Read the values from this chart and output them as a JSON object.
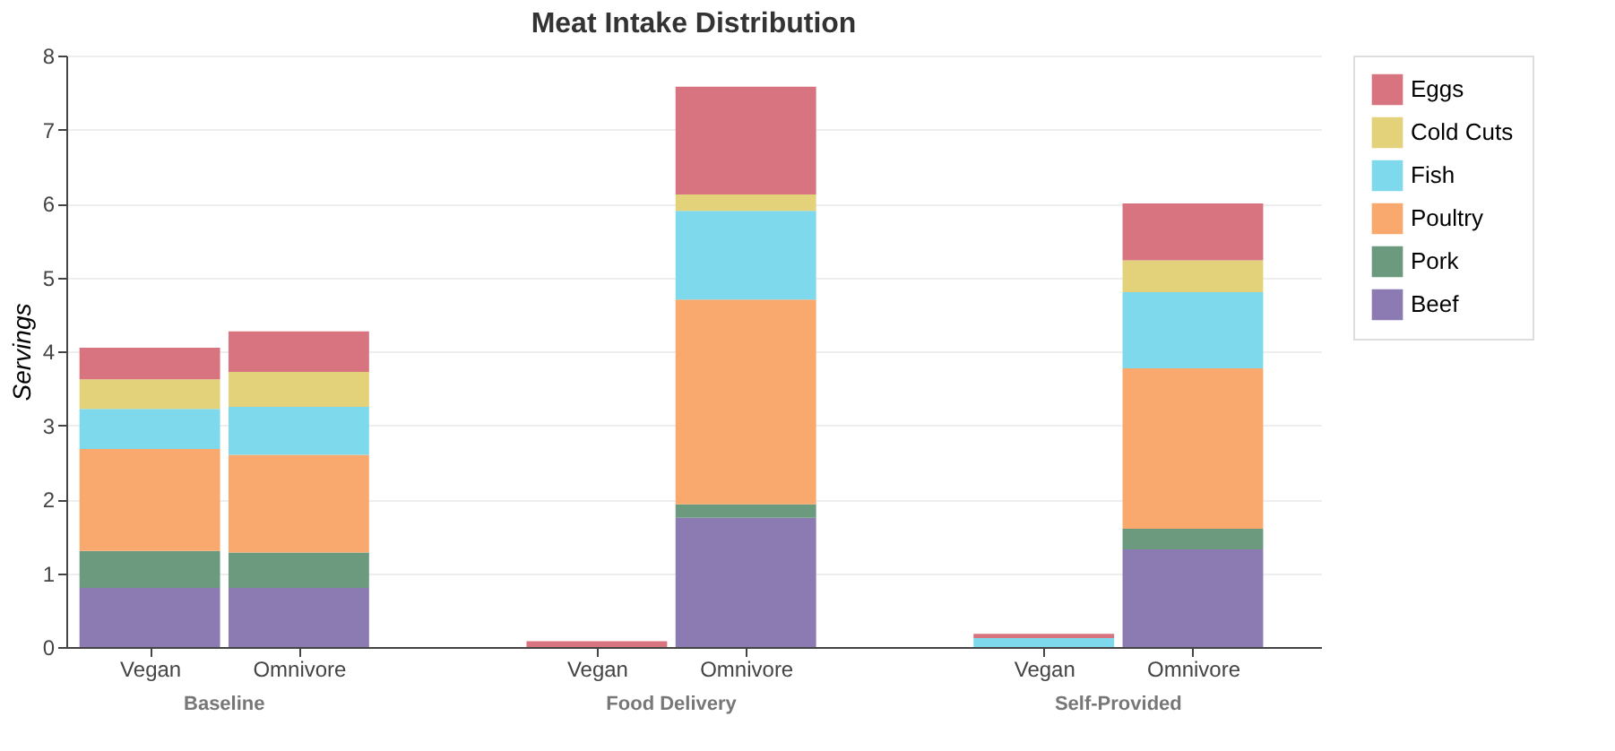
{
  "chart_data": {
    "type": "bar",
    "title": "Meat Intake Distribution",
    "ylabel": "Servings",
    "stacked": true,
    "categories": [
      "Vegan",
      "Omnivore",
      "Vegan",
      "Omnivore",
      "Vegan",
      "Omnivore"
    ],
    "annotations": [
      "Baseline",
      "Food Delivery",
      "Self-Provided"
    ],
    "series": [
      {
        "name": "Beef",
        "color": "#8c7ab3",
        "values": [
          0.8,
          0.8,
          0,
          1.75,
          0,
          1.32
        ]
      },
      {
        "name": "Pork",
        "color": "#6b9a7f",
        "values": [
          0.5,
          0.48,
          0,
          0.18,
          0,
          0.28
        ]
      },
      {
        "name": "Poultry",
        "color": "#f9a96e",
        "values": [
          1.38,
          1.32,
          0,
          2.77,
          0,
          2.17
        ]
      },
      {
        "name": "Fish",
        "color": "#7fd9ec",
        "values": [
          0.54,
          0.65,
          0,
          1.2,
          0.12,
          1.03
        ]
      },
      {
        "name": "Cold Cuts",
        "color": "#e3d27a",
        "values": [
          0.4,
          0.47,
          0,
          0.22,
          0,
          0.43
        ]
      },
      {
        "name": "Eggs",
        "color": "#d8747f",
        "values": [
          0.43,
          0.55,
          0.08,
          1.46,
          0.06,
          0.77
        ]
      }
    ],
    "ylim": [
      0,
      8
    ],
    "yticks": [
      0,
      1,
      2,
      3,
      4,
      5,
      6,
      7,
      8
    ],
    "grid": "y",
    "legend": "top right"
  }
}
